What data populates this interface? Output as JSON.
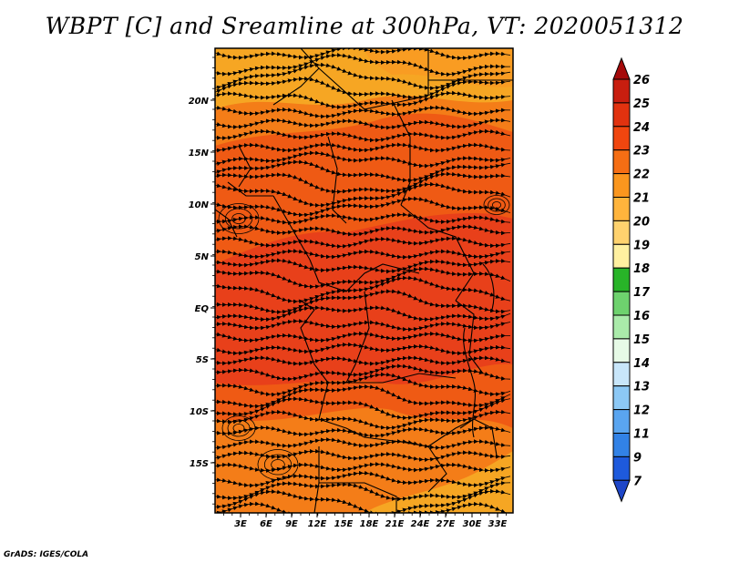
{
  "title": "WBPT [C] and Sreamline at 300hPa, VT: 2020051312",
  "credit": "GrADS: IGES/COLA",
  "map": {
    "lat_ticks": [
      "20N",
      "15N",
      "10N",
      "5N",
      "EQ",
      "5S",
      "10S",
      "15S"
    ],
    "lon_ticks": [
      "3E",
      "6E",
      "9E",
      "12E",
      "15E",
      "18E",
      "21E",
      "24E",
      "27E",
      "30E",
      "33E"
    ]
  },
  "colorbar": {
    "levels": [
      "26",
      "25",
      "24",
      "23",
      "22",
      "21",
      "20",
      "19",
      "18",
      "17",
      "16",
      "15",
      "14",
      "13",
      "12",
      "11",
      "9",
      "7"
    ],
    "colors": [
      "#a50a0a",
      "#c81e0f",
      "#e1320f",
      "#f0460f",
      "#f56e14",
      "#fa961e",
      "#ffb43c",
      "#ffd26e",
      "#fff0a0",
      "#28b428",
      "#6ed26e",
      "#aaebaa",
      "#e6fae6",
      "#c8e6fa",
      "#8cc8f5",
      "#5aa5f0",
      "#3282e6",
      "#1e5adc",
      "#1e46c8"
    ]
  },
  "field_colors": {
    "outer": "#f47d18",
    "mid": "#ef5a14",
    "core": "#e8401a",
    "north": "#f6a623",
    "warm_patch": "#f99b22"
  }
}
